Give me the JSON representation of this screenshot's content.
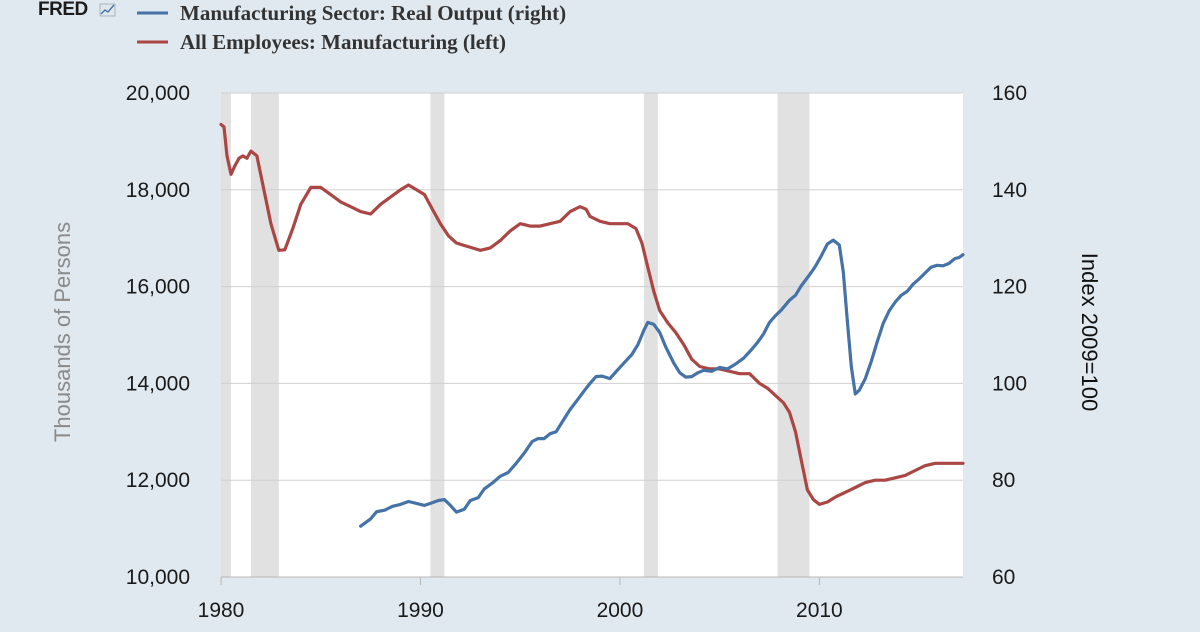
{
  "logo": {
    "text": "FRED"
  },
  "colors": {
    "page_background": "#e1e9f0",
    "plot_background": "#ffffff",
    "recession_shading": "#e1e1e1",
    "gridline": "#d0d0d0",
    "output_series": "#4572a7",
    "employment_series": "#aa4643"
  },
  "chart_data": {
    "type": "line",
    "title": "",
    "xlabel": "",
    "ylabel": "Thousands of Persons",
    "ylabel_right": "Index 2009=100",
    "xlim": [
      1980.0,
      2017.2
    ],
    "ylim": [
      10000,
      20000
    ],
    "ylim_right": [
      60,
      160
    ],
    "x_ticks": [
      1980,
      1990,
      2000,
      2010
    ],
    "x_tick_labels": [
      "1980",
      "1990",
      "2000",
      "2010"
    ],
    "y_ticks": [
      10000,
      12000,
      14000,
      16000,
      18000,
      20000
    ],
    "y_tick_labels": [
      "10,000",
      "12,000",
      "14,000",
      "16,000",
      "18,000",
      "20,000"
    ],
    "y_ticks_right": [
      60,
      80,
      100,
      120,
      140,
      160
    ],
    "y_tick_labels_right": [
      "60",
      "80",
      "100",
      "120",
      "140",
      "160"
    ],
    "grid": true,
    "legend_position": "top-left",
    "recessions": [
      [
        1980.0,
        1980.5
      ],
      [
        1981.5,
        1982.9
      ],
      [
        1990.5,
        1991.2
      ],
      [
        2001.2,
        2001.9
      ],
      [
        2007.9,
        2009.5
      ]
    ],
    "series": [
      {
        "name": "Manufacturing Sector: Real Output (right)",
        "axis": "right",
        "points": [
          [
            1987.0,
            70.5
          ],
          [
            1987.5,
            72.0
          ],
          [
            1987.8,
            73.5
          ],
          [
            1988.2,
            73.8
          ],
          [
            1988.6,
            74.6
          ],
          [
            1989.0,
            75.0
          ],
          [
            1989.4,
            75.6
          ],
          [
            1989.8,
            75.2
          ],
          [
            1990.2,
            74.8
          ],
          [
            1990.5,
            75.2
          ],
          [
            1990.9,
            75.8
          ],
          [
            1991.2,
            76.0
          ],
          [
            1991.5,
            74.8
          ],
          [
            1991.8,
            73.4
          ],
          [
            1992.2,
            74.0
          ],
          [
            1992.5,
            75.8
          ],
          [
            1992.9,
            76.4
          ],
          [
            1993.2,
            78.2
          ],
          [
            1993.6,
            79.4
          ],
          [
            1994.0,
            80.8
          ],
          [
            1994.4,
            81.6
          ],
          [
            1994.8,
            83.5
          ],
          [
            1995.2,
            85.6
          ],
          [
            1995.6,
            88.0
          ],
          [
            1995.9,
            88.6
          ],
          [
            1996.2,
            88.6
          ],
          [
            1996.5,
            89.6
          ],
          [
            1996.8,
            90.0
          ],
          [
            1997.1,
            92.0
          ],
          [
            1997.5,
            94.6
          ],
          [
            1997.8,
            96.2
          ],
          [
            1998.2,
            98.4
          ],
          [
            1998.5,
            100.0
          ],
          [
            1998.8,
            101.4
          ],
          [
            1999.1,
            101.5
          ],
          [
            1999.5,
            101.0
          ],
          [
            1999.8,
            102.4
          ],
          [
            2000.2,
            104.2
          ],
          [
            2000.6,
            106.0
          ],
          [
            2000.9,
            108.0
          ],
          [
            2001.2,
            111.0
          ],
          [
            2001.4,
            112.6
          ],
          [
            2001.7,
            112.2
          ],
          [
            2002.0,
            110.5
          ],
          [
            2002.3,
            107.5
          ],
          [
            2002.7,
            104.2
          ],
          [
            2003.0,
            102.2
          ],
          [
            2003.3,
            101.3
          ],
          [
            2003.6,
            101.4
          ],
          [
            2003.9,
            102.2
          ],
          [
            2004.2,
            102.7
          ],
          [
            2004.6,
            102.5
          ],
          [
            2005.0,
            103.3
          ],
          [
            2005.4,
            103.0
          ],
          [
            2005.8,
            104.0
          ],
          [
            2006.2,
            105.2
          ],
          [
            2006.6,
            107.0
          ],
          [
            2006.9,
            108.5
          ],
          [
            2007.2,
            110.2
          ],
          [
            2007.5,
            112.6
          ],
          [
            2007.8,
            114.0
          ],
          [
            2008.1,
            115.2
          ],
          [
            2008.5,
            117.2
          ],
          [
            2008.8,
            118.2
          ],
          [
            2009.1,
            120.2
          ],
          [
            2009.5,
            122.4
          ],
          [
            2009.8,
            124.2
          ],
          [
            2010.1,
            126.4
          ],
          [
            2010.4,
            128.8
          ],
          [
            2010.7,
            129.6
          ],
          [
            2011.0,
            128.6
          ],
          [
            2011.2,
            123.0
          ],
          [
            2011.4,
            113.0
          ],
          [
            2011.6,
            103.5
          ],
          [
            2011.8,
            97.8
          ],
          [
            2012.0,
            98.6
          ],
          [
            2012.3,
            101.0
          ],
          [
            2012.6,
            104.5
          ],
          [
            2012.9,
            108.6
          ],
          [
            2013.2,
            112.4
          ],
          [
            2013.5,
            115.0
          ],
          [
            2013.8,
            116.8
          ],
          [
            2014.1,
            118.2
          ],
          [
            2014.4,
            119.0
          ],
          [
            2014.7,
            120.5
          ],
          [
            2015.0,
            121.6
          ],
          [
            2015.3,
            122.8
          ],
          [
            2015.6,
            124.0
          ],
          [
            2015.9,
            124.4
          ],
          [
            2016.2,
            124.3
          ],
          [
            2016.5,
            124.8
          ],
          [
            2016.8,
            125.8
          ],
          [
            2017.0,
            126.0
          ],
          [
            2017.2,
            126.6
          ]
        ]
      },
      {
        "name": "All Employees: Manufacturing (left)",
        "axis": "left",
        "points": [
          [
            1980.0,
            19350
          ],
          [
            1980.15,
            19300
          ],
          [
            1980.3,
            18700
          ],
          [
            1980.5,
            18320
          ],
          [
            1980.7,
            18500
          ],
          [
            1980.9,
            18650
          ],
          [
            1981.1,
            18700
          ],
          [
            1981.3,
            18650
          ],
          [
            1981.5,
            18800
          ],
          [
            1981.8,
            18700
          ],
          [
            1982.1,
            18100
          ],
          [
            1982.5,
            17300
          ],
          [
            1982.9,
            16750
          ],
          [
            1983.2,
            16760
          ],
          [
            1983.6,
            17200
          ],
          [
            1984.0,
            17700
          ],
          [
            1984.5,
            18050
          ],
          [
            1985.0,
            18050
          ],
          [
            1985.5,
            17900
          ],
          [
            1986.0,
            17750
          ],
          [
            1986.5,
            17650
          ],
          [
            1987.0,
            17550
          ],
          [
            1987.5,
            17500
          ],
          [
            1988.0,
            17700
          ],
          [
            1988.5,
            17850
          ],
          [
            1989.0,
            18000
          ],
          [
            1989.4,
            18100
          ],
          [
            1989.8,
            18000
          ],
          [
            1990.2,
            17900
          ],
          [
            1990.6,
            17600
          ],
          [
            1991.0,
            17300
          ],
          [
            1991.4,
            17050
          ],
          [
            1991.8,
            16900
          ],
          [
            1992.2,
            16850
          ],
          [
            1992.6,
            16800
          ],
          [
            1993.0,
            16750
          ],
          [
            1993.5,
            16800
          ],
          [
            1994.0,
            16950
          ],
          [
            1994.5,
            17150
          ],
          [
            1995.0,
            17300
          ],
          [
            1995.5,
            17250
          ],
          [
            1996.0,
            17250
          ],
          [
            1996.5,
            17300
          ],
          [
            1997.0,
            17350
          ],
          [
            1997.5,
            17550
          ],
          [
            1998.0,
            17650
          ],
          [
            1998.3,
            17600
          ],
          [
            1998.5,
            17450
          ],
          [
            1999.0,
            17350
          ],
          [
            1999.5,
            17300
          ],
          [
            2000.0,
            17300
          ],
          [
            2000.4,
            17300
          ],
          [
            2000.8,
            17200
          ],
          [
            2001.1,
            16900
          ],
          [
            2001.4,
            16400
          ],
          [
            2001.7,
            15900
          ],
          [
            2002.0,
            15500
          ],
          [
            2002.4,
            15250
          ],
          [
            2002.8,
            15050
          ],
          [
            2003.2,
            14800
          ],
          [
            2003.6,
            14500
          ],
          [
            2004.0,
            14350
          ],
          [
            2004.5,
            14300
          ],
          [
            2005.0,
            14300
          ],
          [
            2005.5,
            14250
          ],
          [
            2006.0,
            14200
          ],
          [
            2006.5,
            14200
          ],
          [
            2007.0,
            14000
          ],
          [
            2007.4,
            13900
          ],
          [
            2007.8,
            13750
          ],
          [
            2008.2,
            13600
          ],
          [
            2008.5,
            13400
          ],
          [
            2008.8,
            13000
          ],
          [
            2009.1,
            12400
          ],
          [
            2009.4,
            11800
          ],
          [
            2009.7,
            11600
          ],
          [
            2010.0,
            11500
          ],
          [
            2010.4,
            11550
          ],
          [
            2010.8,
            11650
          ],
          [
            2011.3,
            11750
          ],
          [
            2011.8,
            11850
          ],
          [
            2012.3,
            11950
          ],
          [
            2012.8,
            12000
          ],
          [
            2013.3,
            12000
          ],
          [
            2013.8,
            12050
          ],
          [
            2014.3,
            12100
          ],
          [
            2014.8,
            12200
          ],
          [
            2015.3,
            12300
          ],
          [
            2015.8,
            12350
          ],
          [
            2016.3,
            12350
          ],
          [
            2016.8,
            12350
          ],
          [
            2017.2,
            12350
          ]
        ]
      }
    ]
  }
}
